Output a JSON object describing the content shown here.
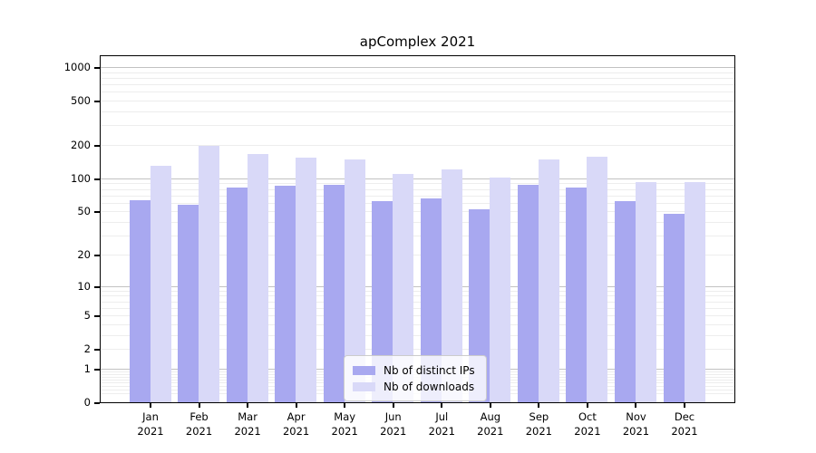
{
  "chart_data": {
    "type": "bar",
    "title": "apComplex 2021",
    "categories": [
      "Jan",
      "Feb",
      "Mar",
      "Apr",
      "May",
      "Jun",
      "Jul",
      "Aug",
      "Sep",
      "Oct",
      "Nov",
      "Dec"
    ],
    "category_sublabel": "2021",
    "series": [
      {
        "name": "Nb of distinct IPs",
        "color": "#a8a8f0",
        "values": [
          63,
          58,
          83,
          86,
          87,
          62,
          66,
          52,
          87,
          83,
          62,
          48
        ]
      },
      {
        "name": "Nb of downloads",
        "color": "#d9d9f8",
        "values": [
          130,
          195,
          165,
          153,
          147,
          110,
          120,
          102,
          147,
          157,
          92,
          92
        ]
      }
    ],
    "yscale": "log1p",
    "yticks": [
      0,
      1,
      2,
      5,
      10,
      20,
      50,
      100,
      200,
      500,
      1000
    ],
    "ylim": [
      0,
      1300
    ],
    "xlabel": "",
    "ylabel": "",
    "grid": "major and minor horizontal gridlines",
    "legend_position": "lower center"
  },
  "colors": {
    "grid_major": "#c2c2c2",
    "grid_minor": "#ededed",
    "axis": "#000000",
    "background": "#ffffff"
  }
}
